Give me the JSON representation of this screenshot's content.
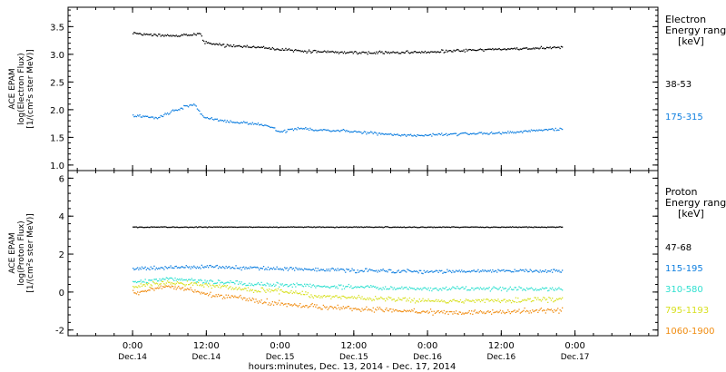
{
  "chart_data": [
    {
      "type": "scatter",
      "panel": "top",
      "ylabel_lines": [
        "ACE EPAM",
        "log(Electron Flux)",
        "[1/(cm²s ster MeV)]"
      ],
      "ylim": [
        0.9,
        3.85
      ],
      "yticks": [
        1.0,
        1.5,
        2.0,
        2.5,
        3.0,
        3.5
      ],
      "ytick_labels": [
        "1.0",
        "1.5",
        "2.0",
        "2.5",
        "3.0",
        "3.5"
      ],
      "legend_title_lines": [
        "Electron",
        "Energy ranges",
        "[keV]"
      ],
      "series": [
        {
          "name": "38-53",
          "color": "#000000",
          "x_hours": [
            0,
            6,
            11,
            11.5,
            14,
            20,
            26,
            28,
            30,
            36,
            42,
            48,
            54,
            60,
            66,
            70
          ],
          "y": [
            3.38,
            3.34,
            3.38,
            3.23,
            3.18,
            3.14,
            3.08,
            3.06,
            3.06,
            3.04,
            3.04,
            3.05,
            3.08,
            3.1,
            3.12,
            3.14
          ]
        },
        {
          "name": "175-315",
          "color": "#0f7fe0",
          "x_hours": [
            0,
            4,
            8,
            10,
            11.5,
            14,
            17,
            20,
            22,
            24,
            26,
            28,
            30,
            34,
            40,
            44,
            48,
            52,
            56,
            62,
            66,
            70
          ],
          "y": [
            1.9,
            1.86,
            2.05,
            2.1,
            1.87,
            1.82,
            1.78,
            1.76,
            1.72,
            1.6,
            1.66,
            1.67,
            1.64,
            1.63,
            1.58,
            1.54,
            1.55,
            1.57,
            1.58,
            1.6,
            1.64,
            1.66
          ]
        }
      ]
    },
    {
      "type": "scatter",
      "panel": "bottom",
      "ylabel_lines": [
        "ACE EPAM",
        "log(Proton Flux)",
        "[1/(cm²s ster MeV)]"
      ],
      "ylim": [
        -2.3,
        6.4
      ],
      "yticks": [
        -2,
        0,
        2,
        4,
        6
      ],
      "ytick_labels": [
        "-2",
        "0",
        "2",
        "4",
        "6"
      ],
      "legend_title_lines": [
        "Proton",
        "Energy ranges",
        "[keV]"
      ],
      "series": [
        {
          "name": "47-68",
          "color": "#000000",
          "x_hours": [
            0,
            70
          ],
          "y": [
            3.45,
            3.45
          ]
        },
        {
          "name": "115-195",
          "color": "#0f7fe0",
          "x_hours": [
            0,
            10,
            20,
            30,
            40,
            50,
            60,
            70
          ],
          "y": [
            1.25,
            1.35,
            1.3,
            1.2,
            1.15,
            1.1,
            1.15,
            1.15
          ]
        },
        {
          "name": "310-580",
          "color": "#30e0d0",
          "x_hours": [
            0,
            6,
            12,
            20,
            30,
            40,
            50,
            60,
            70
          ],
          "y": [
            0.55,
            0.75,
            0.6,
            0.45,
            0.35,
            0.25,
            0.2,
            0.2,
            0.2
          ]
        },
        {
          "name": "795-1193",
          "color": "#d8e020",
          "x_hours": [
            0,
            6,
            12,
            20,
            26,
            30,
            40,
            50,
            60,
            70
          ],
          "y": [
            0.3,
            0.55,
            0.4,
            0.1,
            0.05,
            -0.2,
            -0.3,
            -0.45,
            -0.4,
            -0.35
          ]
        },
        {
          "name": "1060-1900",
          "color": "#f08c10",
          "x_hours": [
            0,
            5,
            8,
            12,
            18,
            24,
            30,
            36,
            42,
            48,
            54,
            60,
            66,
            70
          ],
          "y": [
            -0.05,
            0.3,
            0.25,
            -0.1,
            -0.3,
            -0.6,
            -0.75,
            -0.85,
            -0.95,
            -1.0,
            -1.05,
            -1.0,
            -0.95,
            -0.9
          ]
        }
      ]
    }
  ],
  "x_axis": {
    "hours_range": [
      -10.5,
      85.5
    ],
    "ticks_hours": [
      0,
      12,
      24,
      36,
      48,
      60,
      72
    ],
    "tick_time_labels": [
      "0:00",
      "12:00",
      "0:00",
      "12:00",
      "0:00",
      "12:00",
      "0:00"
    ],
    "tick_date_labels": [
      "Dec.14",
      "Dec.14",
      "Dec.15",
      "Dec.15",
      "Dec.16",
      "Dec.16",
      "Dec.17"
    ],
    "xlabel": "hours:minutes, Dec. 13, 2014 - Dec. 17, 2014"
  }
}
